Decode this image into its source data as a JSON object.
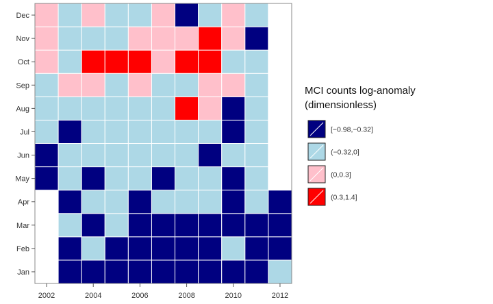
{
  "chart_data": {
    "type": "heatmap",
    "title": "",
    "xlabel": "",
    "ylabel": "",
    "x": [
      2002,
      2003,
      2004,
      2005,
      2006,
      2007,
      2008,
      2009,
      2010,
      2011,
      2012
    ],
    "x_tick_labels": [
      "2002",
      "2004",
      "2006",
      "2008",
      "2010",
      "2012"
    ],
    "y": [
      "Jan",
      "Feb",
      "Mar",
      "Apr",
      "May",
      "Jun",
      "Jul",
      "Aug",
      "Sep",
      "Oct",
      "Nov",
      "Dec"
    ],
    "grid": true,
    "legend": {
      "title_lines": [
        "MCI counts log-anomaly",
        "(dimensionless)"
      ],
      "placement": "right",
      "bins": [
        {
          "label": "[−0.98,−0.32]",
          "color": "#000080"
        },
        {
          "label": "(−0.32,0]",
          "color": "#add8e6"
        },
        {
          "label": "(0,0.3]",
          "color": "#ffc0cb"
        },
        {
          "label": "(0.3,1.4]",
          "color": "#ff0000"
        }
      ]
    },
    "missing_color": "#ffffff",
    "values_by_month": {
      "Jan": [
        null,
        0,
        0,
        0,
        0,
        0,
        0,
        0,
        0,
        0,
        1
      ],
      "Feb": [
        null,
        0,
        1,
        0,
        0,
        0,
        0,
        0,
        1,
        0,
        0
      ],
      "Mar": [
        null,
        1,
        0,
        1,
        0,
        0,
        0,
        0,
        0,
        0,
        0
      ],
      "Apr": [
        null,
        0,
        1,
        1,
        0,
        1,
        1,
        1,
        0,
        1,
        0
      ],
      "May": [
        0,
        1,
        0,
        1,
        1,
        0,
        1,
        1,
        0,
        1,
        null
      ],
      "Jun": [
        0,
        1,
        1,
        1,
        1,
        1,
        1,
        0,
        1,
        1,
        null
      ],
      "Jul": [
        1,
        0,
        1,
        1,
        1,
        1,
        1,
        1,
        0,
        1,
        null
      ],
      "Aug": [
        1,
        1,
        1,
        1,
        1,
        1,
        3,
        2,
        0,
        1,
        null
      ],
      "Sep": [
        1,
        2,
        2,
        1,
        2,
        1,
        1,
        2,
        2,
        1,
        null
      ],
      "Oct": [
        2,
        1,
        3,
        3,
        3,
        2,
        3,
        3,
        1,
        1,
        null
      ],
      "Nov": [
        2,
        1,
        1,
        1,
        2,
        2,
        2,
        3,
        2,
        0,
        null
      ],
      "Dec": [
        2,
        1,
        2,
        1,
        1,
        2,
        0,
        1,
        2,
        1,
        null
      ]
    }
  }
}
